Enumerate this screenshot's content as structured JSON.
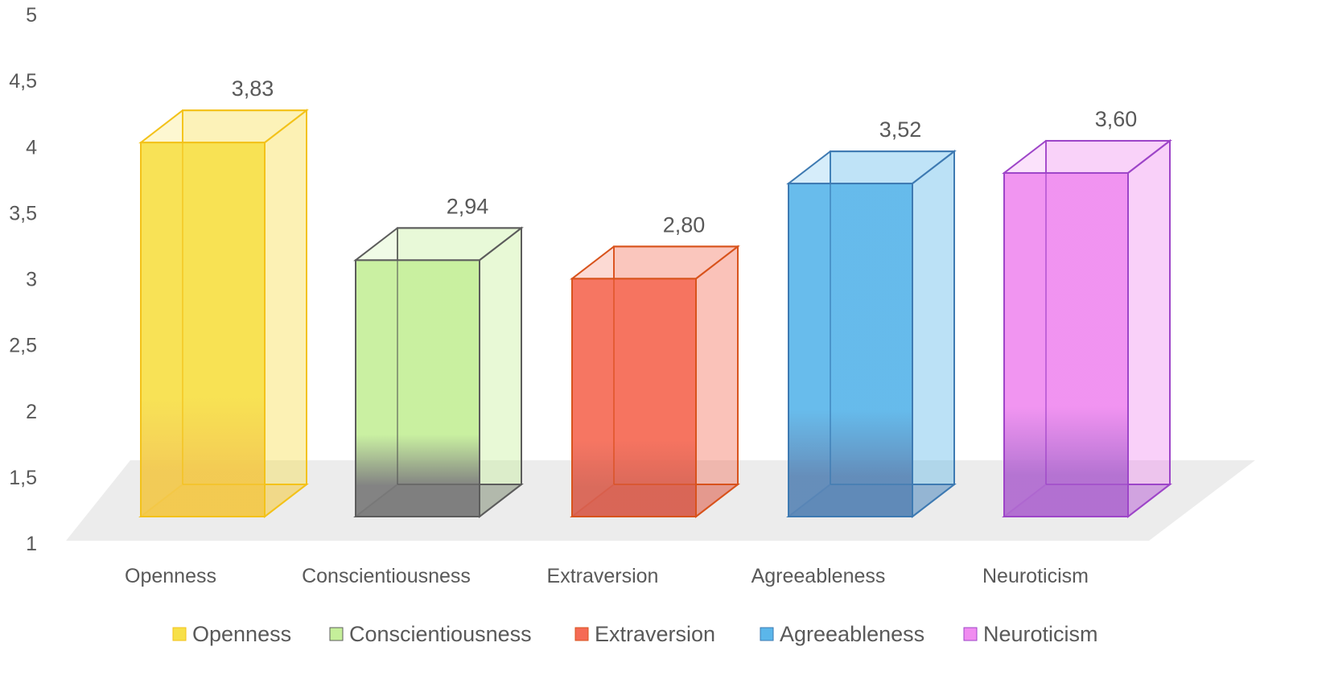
{
  "chart_data": {
    "type": "bar",
    "style": "3d-column",
    "categories": [
      "Openness",
      "Conscientiousness",
      "Extraversion",
      "Agreeableness",
      "Neuroticism"
    ],
    "values": [
      3.83,
      2.94,
      2.8,
      3.52,
      3.6
    ],
    "data_labels": [
      "3,83",
      "2,94",
      "2,80",
      "3,52",
      "3,60"
    ],
    "ylim": [
      1,
      5
    ],
    "yticks": [
      1,
      1.5,
      2,
      2.5,
      3,
      3.5,
      4,
      4.5,
      5
    ],
    "ytick_labels": [
      "1",
      "1,5",
      "2",
      "2,5",
      "3",
      "3,5",
      "4",
      "4,5",
      "5"
    ],
    "title": "",
    "xlabel": "",
    "ylabel": "",
    "grid": false,
    "legend": {
      "placement": "bottom",
      "entries": [
        "Openness",
        "Conscientiousness",
        "Extraversion",
        "Agreeableness",
        "Neuroticism"
      ]
    },
    "colors": {
      "fill": [
        "#f7e048",
        "#c5ef9a",
        "#f56a55",
        "#5bb6ea",
        "#f08cf0"
      ],
      "edge": [
        "#f3c21a",
        "#5c5c5c",
        "#d8531c",
        "#3e7ab2",
        "#9d45c8"
      ],
      "base": [
        "#f3c84a",
        "#7a7a7a",
        "#d86050",
        "#5a86b6",
        "#b06ad0"
      ]
    }
  }
}
